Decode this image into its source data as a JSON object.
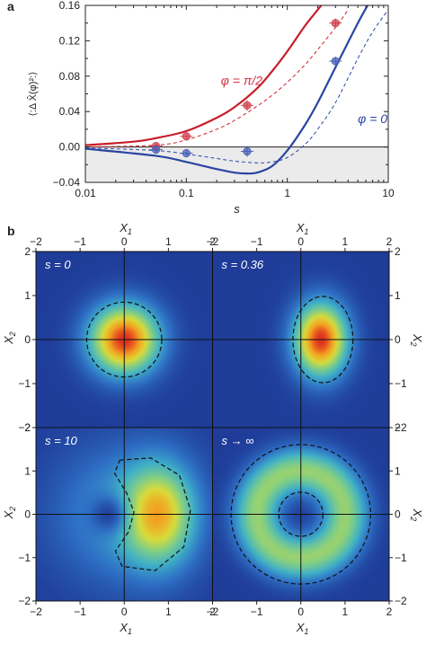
{
  "panel_a": {
    "label": "a",
    "ylabel": "⟨:Δ X̂(φ)²:⟩",
    "xlabel": "s"
  },
  "panel_b": {
    "label": "b",
    "x_axis_label": "X",
    "x_axis_sub": "1",
    "y_axis_label": "X",
    "y_axis_sub": "2",
    "maps": [
      {
        "label": "s = 0",
        "center": [
          0.0,
          0.0
        ],
        "sx": 0.55,
        "sy": 0.55,
        "kind": "gauss",
        "dashed": {
          "type": "circle",
          "cx": 0.0,
          "cy": 0.0,
          "rx": 0.85,
          "ry": 0.85
        }
      },
      {
        "label": "s = 0.36",
        "center": [
          0.45,
          0.0
        ],
        "sx": 0.42,
        "sy": 0.58,
        "kind": "gauss",
        "dashed": {
          "type": "ellipse",
          "cx": 0.5,
          "cy": 0.0,
          "rx": 0.68,
          "ry": 0.98
        }
      },
      {
        "label": "s = 10",
        "center": [
          0.8,
          0.0
        ],
        "sx": 0.55,
        "sy": 0.8,
        "kind": "crescent",
        "dashed": {
          "type": "crescent"
        }
      },
      {
        "label": "s → ∞",
        "center": [
          0.0,
          0.0
        ],
        "r0": 1.0,
        "w": 0.38,
        "kind": "ring",
        "dashed": {
          "type": "rings",
          "r_inner": 0.5,
          "r_outer": 1.58
        }
      }
    ],
    "colormap": [
      "#1f3c99",
      "#2f72c6",
      "#3fb0c8",
      "#7ccd8a",
      "#d9dc3a",
      "#f4a020",
      "#de2c20"
    ]
  },
  "chart_data": [
    {
      "type": "line",
      "panel": "a",
      "xscale": "log",
      "xlim": [
        0.01,
        10
      ],
      "ylim": [
        -0.04,
        0.16
      ],
      "xticks": [
        0.01,
        0.1,
        1,
        10
      ],
      "xtick_labels": [
        "0.01",
        "0.1",
        "1",
        "10"
      ],
      "yticks": [
        -0.04,
        0.0,
        0.04,
        0.08,
        0.12,
        0.16
      ],
      "ytick_labels": [
        "−0.04",
        "0.00",
        "0.04",
        "0.08",
        "0.12",
        "0.16"
      ],
      "xlabel": "s",
      "ylabel": "⟨:Δ X̂(φ)²:⟩",
      "annotations": [
        {
          "text": "φ = π/2",
          "x": 0.22,
          "y": 0.07,
          "color": "#d03040"
        },
        {
          "text": "φ = 0",
          "x": 5.0,
          "y": 0.027,
          "color": "#2a45a0"
        }
      ],
      "series": [
        {
          "color": "#c81e2a",
          "style": "solid",
          "x": [
            0.01,
            0.03,
            0.05,
            0.1,
            0.2,
            0.3,
            0.5,
            0.7,
            1.0,
            1.5,
            2.0,
            3.0
          ],
          "y": [
            0.002,
            0.006,
            0.01,
            0.018,
            0.033,
            0.045,
            0.066,
            0.085,
            0.108,
            0.137,
            0.155,
            0.18
          ]
        },
        {
          "color": "#d0303c",
          "style": "dashed",
          "x": [
            0.01,
            0.05,
            0.1,
            0.2,
            0.3,
            0.5,
            0.7,
            1.0,
            1.5,
            2.0,
            3.0,
            4.0
          ],
          "y": [
            0.0,
            0.002,
            0.008,
            0.02,
            0.03,
            0.046,
            0.058,
            0.073,
            0.093,
            0.11,
            0.135,
            0.155
          ]
        },
        {
          "color": "#2a45a0",
          "style": "solid",
          "x": [
            0.01,
            0.05,
            0.1,
            0.2,
            0.3,
            0.4,
            0.5,
            0.7,
            1.0,
            1.5,
            2.0,
            3.0,
            5.0,
            7.0
          ],
          "y": [
            -0.002,
            -0.01,
            -0.017,
            -0.025,
            -0.029,
            -0.03,
            -0.029,
            -0.022,
            -0.004,
            0.025,
            0.05,
            0.09,
            0.14,
            0.17
          ]
        },
        {
          "color": "#3a55b0",
          "style": "dashed",
          "x": [
            0.01,
            0.05,
            0.1,
            0.2,
            0.3,
            0.5,
            0.7,
            1.0,
            1.5,
            2.0,
            3.0,
            5.0,
            7.0,
            10.0
          ],
          "y": [
            -0.001,
            -0.004,
            -0.008,
            -0.013,
            -0.016,
            -0.018,
            -0.017,
            -0.012,
            0.003,
            0.02,
            0.05,
            0.1,
            0.13,
            0.155
          ]
        }
      ],
      "points": [
        {
          "series_color": "#d04050",
          "x": 0.05,
          "y": 0.001,
          "yerr": 0.004
        },
        {
          "series_color": "#d04050",
          "x": 0.1,
          "y": 0.012,
          "yerr": 0.003
        },
        {
          "series_color": "#d04050",
          "x": 0.4,
          "y": 0.047,
          "yerr": 0.006
        },
        {
          "series_color": "#d04050",
          "x": 3.0,
          "y": 0.14,
          "yerr": 0.005
        },
        {
          "series_color": "#4a62b8",
          "x": 0.05,
          "y": -0.003,
          "yerr": 0.004
        },
        {
          "series_color": "#4a62b8",
          "x": 0.1,
          "y": -0.007,
          "yerr": 0.003
        },
        {
          "series_color": "#4a62b8",
          "x": 0.4,
          "y": -0.005,
          "yerr": 0.006
        },
        {
          "series_color": "#4a62b8",
          "x": 3.0,
          "y": 0.097,
          "yerr": 0.005
        }
      ],
      "shade": {
        "ymin": -0.04,
        "ymax": 0.0,
        "color": "#ebebeb"
      },
      "grid": false
    },
    {
      "type": "heatmap",
      "panel": "b",
      "xlim": [
        -2,
        2
      ],
      "ylim": [
        -2,
        2
      ],
      "ticks": [
        -2,
        -1,
        0,
        1,
        2
      ],
      "tick_labels": [
        "−2",
        "−1",
        "0",
        "1",
        "2"
      ]
    }
  ]
}
